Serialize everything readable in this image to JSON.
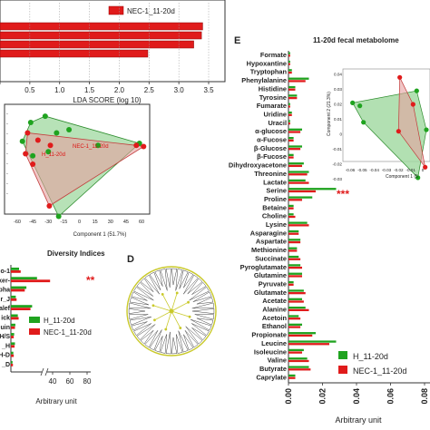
{
  "colors": {
    "green": "#1fa31f",
    "red": "#e01b1b",
    "green_fill": "#9fd89f",
    "red_fill": "#e6a0a0",
    "axis": "#333333"
  },
  "lda": {
    "legend": "NEC-1_11-20d",
    "xlabel": "LDA SCORE (log 10)",
    "ticks": [
      "0",
      "0.5",
      "1.0",
      "1.5",
      "2.0",
      "2.5",
      "3.0",
      "3.5"
    ],
    "tick_values": [
      0,
      0.5,
      1.0,
      1.5,
      2.0,
      2.5,
      3.0,
      3.5
    ],
    "bar_values": [
      3.4,
      3.38,
      3.25,
      2.48
    ]
  },
  "pca_b": {
    "xlabel": "Component 1 (51.7%)",
    "xticks": [
      "-60",
      "-45",
      "-30",
      "-15",
      "0",
      "15",
      "30",
      "45",
      "60"
    ],
    "label_h": "H_11-20d",
    "label_nec": "NEC-1_11-20d",
    "green_points": [
      [
        -47,
        40
      ],
      [
        -33,
        46
      ],
      [
        -22,
        30
      ],
      [
        -10,
        33
      ],
      [
        18,
        18
      ],
      [
        58,
        20
      ],
      [
        -55,
        22
      ],
      [
        -30,
        12
      ],
      [
        -20,
        -50
      ],
      [
        -45,
        8
      ]
    ],
    "red_points": [
      [
        -50,
        30
      ],
      [
        -40,
        23
      ],
      [
        -28,
        18
      ],
      [
        -52,
        10
      ],
      [
        55,
        18
      ],
      [
        62,
        17
      ],
      [
        -45,
        0
      ],
      [
        -29,
        -40
      ]
    ]
  },
  "diversity": {
    "title": "Diversity Indices",
    "indices": [
      "o-1",
      "ker-",
      "pha",
      "r_J",
      "alef",
      "ick",
      "uin",
      "H/S",
      "_H",
      "H-D",
      "_D"
    ],
    "h_values": [
      1.0,
      3.2,
      1.9,
      0.6,
      2.6,
      0.85,
      0.55,
      0.4,
      0.5,
      0.3,
      0.2
    ],
    "nec_values": [
      1.2,
      4.8,
      1.7,
      0.7,
      2.4,
      0.95,
      0.5,
      0.35,
      0.45,
      0.35,
      0.25
    ],
    "xticks": [
      "40",
      "60",
      "80"
    ],
    "xlabel": "Arbitrary unit",
    "legend_h": "H_11-20d",
    "legend_nec": "NEC-1_11-20d",
    "sig": "**"
  },
  "tree": {
    "label": "D"
  },
  "metabolome": {
    "panel": "E",
    "title": "11-20d fecal metabolome",
    "metabolites": [
      "Formate",
      "Hypoxantine",
      "Tryptophan",
      "Phenylalanine",
      "Histidine",
      "Tyrosine",
      "Fumarate",
      "Uridine",
      "Uracil",
      "α-glucose",
      "α-Fucose",
      "β-Glucose",
      "β-Fucose",
      "Dihydroxyacetone",
      "Threonine",
      "Lactate",
      "Serine",
      "Proline",
      "Betaine",
      "Choline",
      "Lysine",
      "Asparagine",
      "Aspartate",
      "Methionine",
      "Succinate",
      "Pyroglutamate",
      "Glutamine",
      "Pyruvate",
      "Glutamate",
      "Acetate",
      "Alanine",
      "Acetoin",
      "Ethanol",
      "Propionate",
      "Leucine",
      "Isoleucine",
      "Valine",
      "Butyrate",
      "Caprylate"
    ],
    "h_values": [
      0.001,
      0.001,
      0.002,
      0.012,
      0.004,
      0.005,
      0.001,
      0.002,
      0.001,
      0.008,
      0.003,
      0.008,
      0.003,
      0.009,
      0.012,
      0.01,
      0.028,
      0.014,
      0.003,
      0.003,
      0.011,
      0.006,
      0.007,
      0.005,
      0.006,
      0.007,
      0.008,
      0.003,
      0.009,
      0.008,
      0.01,
      0.006,
      0.008,
      0.016,
      0.028,
      0.009,
      0.011,
      0.012,
      0.004
    ],
    "nec_values": [
      0.001,
      0.001,
      0.002,
      0.01,
      0.004,
      0.005,
      0.001,
      0.002,
      0.001,
      0.007,
      0.003,
      0.007,
      0.003,
      0.008,
      0.011,
      0.012,
      0.016,
      0.008,
      0.003,
      0.004,
      0.012,
      0.006,
      0.007,
      0.005,
      0.007,
      0.008,
      0.008,
      0.003,
      0.01,
      0.009,
      0.012,
      0.007,
      0.007,
      0.014,
      0.024,
      0.008,
      0.012,
      0.013,
      0.004
    ],
    "xticks": [
      "0.00",
      "0.02",
      "0.04",
      "0.06",
      "0.08"
    ],
    "xtick_values": [
      0,
      0.02,
      0.04,
      0.06,
      0.08
    ],
    "xlabel": "Arbitrary unit",
    "legend_h": "H_11-20d",
    "legend_nec": "NEC-1_11-20d",
    "sig": "***"
  },
  "pls_e": {
    "ylabel": "Component 2 (21.3%)",
    "xlabel": "Component 1 (5",
    "xticks": [
      "-0.06",
      "-0.05",
      "-0.04",
      "-0.03",
      "-0.02",
      "-0.01",
      "0"
    ],
    "yticks": [
      "0.04",
      "0.03",
      "0.02",
      "0.01",
      "0",
      "-0.01",
      "-0.02",
      "-0.03"
    ],
    "green_points": [
      [
        -0.058,
        0.021
      ],
      [
        -0.052,
        0.019
      ],
      [
        -0.049,
        0.008
      ],
      [
        -0.005,
        0.029
      ],
      [
        0.003,
        0.003
      ],
      [
        -0.004,
        -0.029
      ]
    ],
    "red_points": [
      [
        -0.019,
        0.038
      ],
      [
        -0.008,
        0.02
      ],
      [
        -0.02,
        0.002
      ],
      [
        0.002,
        -0.022
      ]
    ]
  },
  "chart_data": [
    {
      "type": "bar",
      "categories": [
        "",
        "",
        "",
        ""
      ],
      "values": [
        3.4,
        3.38,
        3.25,
        2.48
      ],
      "xlabel": "LDA SCORE (log 10)",
      "series": [
        {
          "name": "NEC-1_11-20d",
          "values": [
            3.4,
            3.38,
            3.25,
            2.48
          ]
        }
      ],
      "xlim": [
        0,
        3.5
      ],
      "grid": true
    },
    {
      "type": "scatter",
      "xlabel": "Component 1 (51.7%)",
      "xlim": [
        -60,
        60
      ],
      "series": [
        {
          "name": "H_11-20d",
          "points": [
            [
              -47,
              40
            ],
            [
              -33,
              46
            ],
            [
              -22,
              30
            ],
            [
              -10,
              33
            ],
            [
              18,
              18
            ],
            [
              58,
              20
            ],
            [
              -55,
              22
            ],
            [
              -30,
              12
            ],
            [
              -20,
              -50
            ],
            [
              -45,
              8
            ]
          ]
        },
        {
          "name": "NEC-1_11-20d",
          "points": [
            [
              -50,
              30
            ],
            [
              -40,
              23
            ],
            [
              -28,
              18
            ],
            [
              -52,
              10
            ],
            [
              55,
              18
            ],
            [
              62,
              17
            ],
            [
              -45,
              0
            ],
            [
              -29,
              -40
            ]
          ]
        }
      ]
    },
    {
      "type": "bar",
      "title": "Diversity Indices",
      "xlabel": "Arbitrary unit",
      "categories": [
        "o-1",
        "ker-",
        "pha",
        "r_J",
        "alef",
        "ick",
        "uin",
        "H/S",
        "_H",
        "H-D",
        "_D"
      ],
      "series": [
        {
          "name": "H_11-20d",
          "values": [
            1.0,
            3.2,
            1.9,
            0.6,
            2.6,
            0.85,
            0.55,
            0.4,
            0.5,
            0.3,
            0.2
          ]
        },
        {
          "name": "NEC-1_11-20d",
          "values": [
            1.2,
            4.8,
            1.7,
            0.7,
            2.4,
            0.95,
            0.5,
            0.35,
            0.45,
            0.35,
            0.25
          ]
        }
      ]
    },
    {
      "type": "bar",
      "title": "11-20d fecal metabolome",
      "xlabel": "Arbitrary unit",
      "xlim": [
        0,
        0.08
      ],
      "categories": [
        "Formate",
        "Hypoxantine",
        "Tryptophan",
        "Phenylalanine",
        "Histidine",
        "Tyrosine",
        "Fumarate",
        "Uridine",
        "Uracil",
        "α-glucose",
        "α-Fucose",
        "β-Glucose",
        "β-Fucose",
        "Dihydroxyacetone",
        "Threonine",
        "Lactate",
        "Serine",
        "Proline",
        "Betaine",
        "Choline",
        "Lysine",
        "Asparagine",
        "Aspartate",
        "Methionine",
        "Succinate",
        "Pyroglutamate",
        "Glutamine",
        "Pyruvate",
        "Glutamate",
        "Acetate",
        "Alanine",
        "Acetoin",
        "Ethanol",
        "Propionate",
        "Leucine",
        "Isoleucine",
        "Valine",
        "Butyrate",
        "Caprylate"
      ],
      "series": [
        {
          "name": "H_11-20d",
          "values": [
            0.001,
            0.001,
            0.002,
            0.012,
            0.004,
            0.005,
            0.001,
            0.002,
            0.001,
            0.008,
            0.003,
            0.008,
            0.003,
            0.009,
            0.012,
            0.01,
            0.028,
            0.014,
            0.003,
            0.003,
            0.011,
            0.006,
            0.007,
            0.005,
            0.006,
            0.007,
            0.008,
            0.003,
            0.009,
            0.008,
            0.01,
            0.006,
            0.008,
            0.016,
            0.028,
            0.009,
            0.011,
            0.012,
            0.004
          ]
        },
        {
          "name": "NEC-1_11-20d",
          "values": [
            0.001,
            0.001,
            0.002,
            0.01,
            0.004,
            0.005,
            0.001,
            0.002,
            0.001,
            0.007,
            0.003,
            0.007,
            0.003,
            0.008,
            0.011,
            0.012,
            0.016,
            0.008,
            0.003,
            0.004,
            0.012,
            0.006,
            0.007,
            0.005,
            0.007,
            0.008,
            0.008,
            0.003,
            0.01,
            0.009,
            0.012,
            0.007,
            0.007,
            0.014,
            0.024,
            0.008,
            0.012,
            0.013,
            0.004
          ]
        }
      ]
    },
    {
      "type": "scatter",
      "xlabel": "Component 1 (5",
      "ylabel": "Component 2 (21.3%)",
      "xlim": [
        -0.06,
        0.0
      ],
      "ylim": [
        -0.03,
        0.04
      ],
      "series": [
        {
          "name": "H_11-20d",
          "points": [
            [
              -0.058,
              0.021
            ],
            [
              -0.052,
              0.019
            ],
            [
              -0.049,
              0.008
            ],
            [
              -0.005,
              0.029
            ],
            [
              0.003,
              0.003
            ],
            [
              -0.004,
              -0.029
            ]
          ]
        },
        {
          "name": "NEC-1_11-20d",
          "points": [
            [
              -0.019,
              0.038
            ],
            [
              -0.008,
              0.02
            ],
            [
              -0.02,
              0.002
            ],
            [
              0.002,
              -0.022
            ]
          ]
        }
      ]
    }
  ]
}
